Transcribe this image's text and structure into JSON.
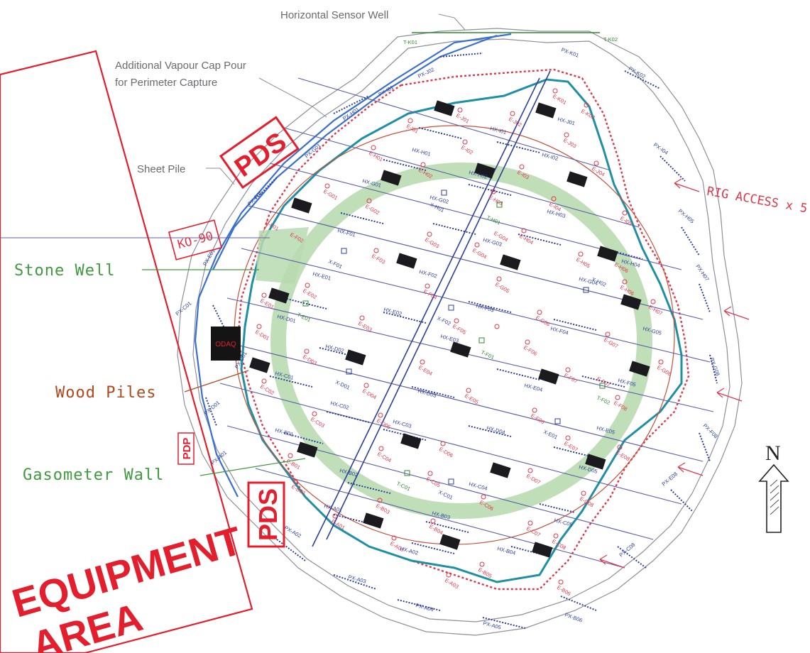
{
  "labels": {
    "horizontal_sensor_well": "Horizontal Sensor Well",
    "vapour_cap_line1": "Additional Vapour Cap Pour",
    "vapour_cap_line2": "for Perimeter Capture",
    "sheet_pile": "Sheet Pile",
    "stone_well": "Stone Well",
    "wood_piles": "Wood Piles",
    "gasometer_wall": "Gasometer Wall",
    "rig_access": "RIG ACCESS x 5",
    "ko_90": "KO-90",
    "pds_top": "PDS",
    "pds_bottom": "PDS",
    "pdp": "PDP",
    "equipment_line1": "EQUIPMENT",
    "equipment_line2": "AREA",
    "odaq": "ODAQ",
    "north": "N"
  },
  "colors": {
    "stamp_red": "#e31e2d",
    "extraction_red": "#e0364a",
    "heater_blue": "#2c3f9e",
    "perimeter_teal": "#1f8fa3",
    "stone_well_green": "#b9dbb0",
    "sheet_pile_blue": "#3a6fcf",
    "outline_gray": "#8d8f9a"
  },
  "wells": {
    "extraction": [
      "E-K01",
      "E-K02",
      "E-J01",
      "E-J02",
      "E-J03",
      "E-J04",
      "E-I01",
      "E-I02",
      "E-I03",
      "E-I04",
      "E-I05",
      "E-I06",
      "E-I07",
      "E-H01",
      "E-H02",
      "E-H03",
      "E-H04",
      "E-H05",
      "E-H06",
      "E-G01",
      "E-G02",
      "E-G03",
      "E-G04",
      "E-G05",
      "E-G06",
      "E-G07",
      "E-G08",
      "E-F01",
      "E-F02",
      "E-F03",
      "E-F04",
      "E-F05",
      "E-F06",
      "E-F07",
      "E-F08",
      "E-E01",
      "E-E02",
      "E-E03",
      "E-E04",
      "E-E05",
      "E-E06",
      "E-E07",
      "E-E08",
      "E-D01",
      "E-D02",
      "E-D03",
      "E-D04",
      "E-D05",
      "E-D06",
      "E-D07",
      "E-D08",
      "E-C01",
      "E-C02",
      "E-C03",
      "E-C04",
      "E-C05",
      "E-C06",
      "E-C07",
      "E-C08",
      "E-B01",
      "E-B02",
      "E-B03",
      "E-B04",
      "E-B05",
      "E-B06",
      "E-A01",
      "E-A02",
      "E-A03"
    ],
    "heaters": [
      "HX-J01",
      "HX-I01",
      "HX-I02",
      "HX-H01",
      "HX-H02",
      "HX-H03",
      "HX-H04",
      "HX-G01",
      "HX-G02",
      "HX-G03",
      "HX-G04",
      "HX-G05",
      "HX-F01",
      "HX-F02",
      "HX-F03",
      "HX-F04",
      "HX-F05",
      "HX-E01",
      "HX-E02",
      "HX-E03",
      "HX-E04",
      "HX-E05",
      "HX-D01",
      "HX-D02",
      "HX-D03",
      "HX-D04",
      "HX-D05",
      "HX-C01",
      "HX-C02",
      "HX-C03",
      "HX-C04",
      "HX-C05",
      "HX-B01",
      "HX-B02",
      "HX-B03",
      "HX-B04",
      "HX-A01",
      "HX-A02"
    ],
    "perimeter": [
      "PX-K01",
      "PX-K02",
      "PX-J02",
      "PX-I04",
      "PX-I01",
      "PX-H01",
      "PX-H05",
      "PX-H07",
      "PX-G01",
      "PX-G08",
      "PX-F01",
      "PX-F08",
      "PX-E01",
      "PX-E08",
      "PX-D01",
      "PX-C01",
      "PX-C08",
      "PX-B01",
      "PX-B06",
      "PX-A01",
      "PX-A02",
      "PX-A03",
      "PX-A04",
      "PX-A05"
    ],
    "sensors": [
      "X-H01",
      "X-H02",
      "X-F01",
      "X-F02",
      "X-D01",
      "X-E01",
      "X-C01"
    ],
    "thermocouples": [
      "T-K01",
      "T-K02",
      "T-H01",
      "T-F01",
      "T-F02",
      "T-E01",
      "T-C01"
    ]
  }
}
